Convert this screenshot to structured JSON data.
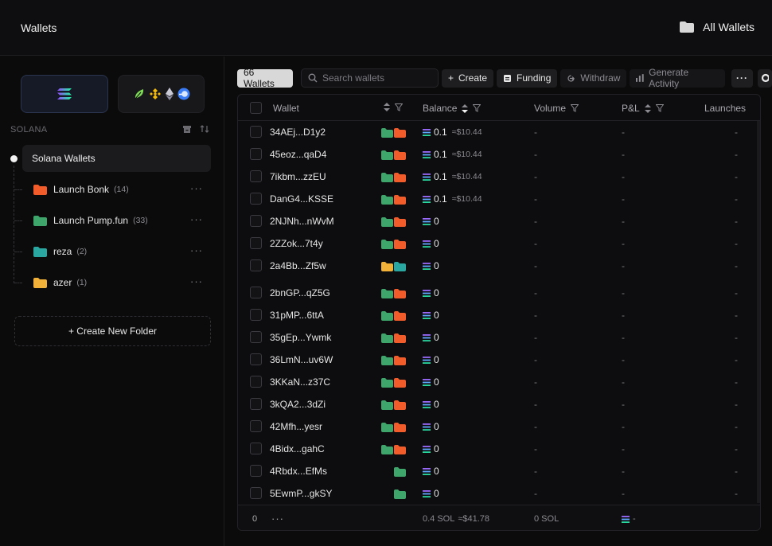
{
  "header": {
    "title": "Wallets",
    "all_wallets_label": "All Wallets"
  },
  "sidebar": {
    "section_label": "SOLANA",
    "root_item": "Solana Wallets",
    "folders": [
      {
        "name": "Launch Bonk",
        "count": "(14)",
        "color": "#f25c2a"
      },
      {
        "name": "Launch Pump.fun",
        "count": "(33)",
        "color": "#3fa66b"
      },
      {
        "name": "reza",
        "count": "(2)",
        "color": "#2aa7a0"
      },
      {
        "name": "azer",
        "count": "(1)",
        "color": "#f2b23a"
      }
    ],
    "create_folder_label": "+ Create New Folder"
  },
  "toolbar": {
    "count_label": "66 Wallets",
    "search_placeholder": "Search wallets",
    "create_label": "Create",
    "funding_label": "Funding",
    "withdraw_label": "Withdraw",
    "generate_label": "Generate Activity"
  },
  "table": {
    "columns": [
      "Wallet",
      "Balance",
      "Volume",
      "P&L",
      "Launches"
    ],
    "rows": [
      {
        "wallet": "34AEj...D1y2",
        "folders": [
          "#3fa66b",
          "#f25c2a"
        ],
        "balance": "0.1",
        "usd": "≈$10.44",
        "volume": "-",
        "pnl": "-",
        "launches": "-"
      },
      {
        "wallet": "45eoz...qaD4",
        "folders": [
          "#3fa66b",
          "#f25c2a"
        ],
        "balance": "0.1",
        "usd": "≈$10.44",
        "volume": "-",
        "pnl": "-",
        "launches": "-"
      },
      {
        "wallet": "7ikbm...zzEU",
        "folders": [
          "#3fa66b",
          "#f25c2a"
        ],
        "balance": "0.1",
        "usd": "≈$10.44",
        "volume": "-",
        "pnl": "-",
        "launches": "-"
      },
      {
        "wallet": "DanG4...KSSE",
        "folders": [
          "#3fa66b",
          "#f25c2a"
        ],
        "balance": "0.1",
        "usd": "≈$10.44",
        "volume": "-",
        "pnl": "-",
        "launches": "-"
      },
      {
        "wallet": "2NJNh...nWvM",
        "folders": [
          "#3fa66b",
          "#f25c2a"
        ],
        "balance": "0",
        "usd": "",
        "volume": "-",
        "pnl": "-",
        "launches": "-"
      },
      {
        "wallet": "2ZZok...7t4y",
        "folders": [
          "#3fa66b",
          "#f25c2a"
        ],
        "balance": "0",
        "usd": "",
        "volume": "-",
        "pnl": "-",
        "launches": "-"
      },
      {
        "wallet": "2a4Bb...Zf5w",
        "folders": [
          "#f2b23a",
          "#2aa7a0"
        ],
        "balance": "0",
        "usd": "",
        "volume": "-",
        "pnl": "-",
        "launches": "-"
      },
      {
        "wallet": "2bnGP...qZ5G",
        "folders": [
          "#3fa66b",
          "#f25c2a"
        ],
        "balance": "0",
        "usd": "",
        "volume": "-",
        "pnl": "-",
        "launches": "-"
      },
      {
        "wallet": "31pMP...6ttA",
        "folders": [
          "#3fa66b",
          "#f25c2a"
        ],
        "balance": "0",
        "usd": "",
        "volume": "-",
        "pnl": "-",
        "launches": "-"
      },
      {
        "wallet": "35gEp...Ywmk",
        "folders": [
          "#3fa66b",
          "#f25c2a"
        ],
        "balance": "0",
        "usd": "",
        "volume": "-",
        "pnl": "-",
        "launches": "-"
      },
      {
        "wallet": "36LmN...uv6W",
        "folders": [
          "#3fa66b",
          "#f25c2a"
        ],
        "balance": "0",
        "usd": "",
        "volume": "-",
        "pnl": "-",
        "launches": "-"
      },
      {
        "wallet": "3KKaN...z37C",
        "folders": [
          "#3fa66b",
          "#f25c2a"
        ],
        "balance": "0",
        "usd": "",
        "volume": "-",
        "pnl": "-",
        "launches": "-"
      },
      {
        "wallet": "3kQA2...3dZi",
        "folders": [
          "#3fa66b",
          "#f25c2a"
        ],
        "balance": "0",
        "usd": "",
        "volume": "-",
        "pnl": "-",
        "launches": "-"
      },
      {
        "wallet": "42Mfh...yesr",
        "folders": [
          "#3fa66b",
          "#f25c2a"
        ],
        "balance": "0",
        "usd": "",
        "volume": "-",
        "pnl": "-",
        "launches": "-"
      },
      {
        "wallet": "4Bidx...gahC",
        "folders": [
          "#3fa66b",
          "#f25c2a"
        ],
        "balance": "0",
        "usd": "",
        "volume": "-",
        "pnl": "-",
        "launches": "-"
      },
      {
        "wallet": "4Rbdx...EfMs",
        "folders": [
          "#3fa66b"
        ],
        "balance": "0",
        "usd": "",
        "volume": "-",
        "pnl": "-",
        "launches": "-"
      },
      {
        "wallet": "5EwmP...gkSY",
        "folders": [
          "#3fa66b"
        ],
        "balance": "0",
        "usd": "",
        "volume": "-",
        "pnl": "-",
        "launches": "-"
      }
    ],
    "footer": {
      "selected": "0",
      "balance_total": "0.4 SOL",
      "usd_total": "≈$41.78",
      "volume_total": "0 SOL",
      "pnl_total": "-"
    }
  },
  "icons": {
    "chain_primary": "solana-logo-icon",
    "chains_other": [
      "pump-leaf-icon",
      "bnb-icon",
      "ethereum-icon",
      "base-icon"
    ]
  }
}
